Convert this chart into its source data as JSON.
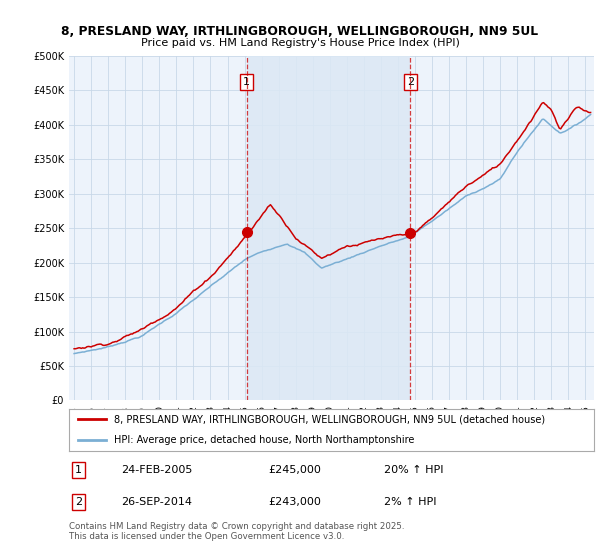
{
  "title1": "8, PRESLAND WAY, IRTHLINGBOROUGH, WELLINGBOROUGH, NN9 5UL",
  "title2": "Price paid vs. HM Land Registry's House Price Index (HPI)",
  "legend1": "8, PRESLAND WAY, IRTHLINGBOROUGH, WELLINGBOROUGH, NN9 5UL (detached house)",
  "legend2": "HPI: Average price, detached house, North Northamptonshire",
  "footnote": "Contains HM Land Registry data © Crown copyright and database right 2025.\nThis data is licensed under the Open Government Licence v3.0.",
  "sale1_label": "1",
  "sale1_date": "24-FEB-2005",
  "sale1_price": "£245,000",
  "sale1_hpi": "20% ↑ HPI",
  "sale1_year": 2005.12,
  "sale1_value": 245000,
  "sale2_label": "2",
  "sale2_date": "26-SEP-2014",
  "sale2_price": "£243,000",
  "sale2_hpi": "2% ↑ HPI",
  "sale2_year": 2014.73,
  "sale2_value": 243000,
  "red_color": "#cc0000",
  "blue_color": "#7bafd4",
  "shade_color": "#dce8f5",
  "bg_color": "#edf3fb",
  "ylim": [
    0,
    500000
  ],
  "yticks": [
    0,
    50000,
    100000,
    150000,
    200000,
    250000,
    300000,
    350000,
    400000,
    450000,
    500000
  ],
  "xmin": 1994.7,
  "xmax": 2025.5
}
